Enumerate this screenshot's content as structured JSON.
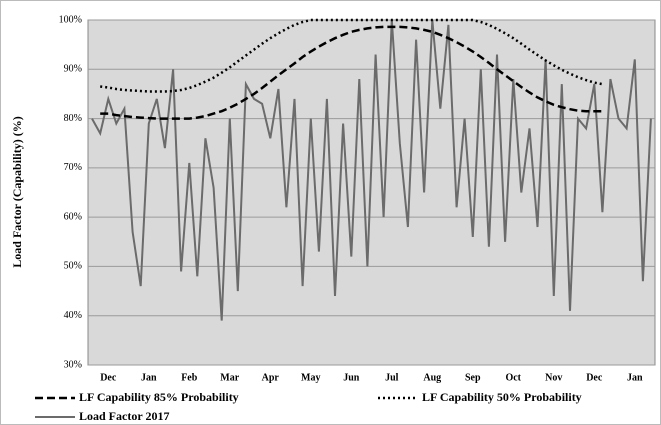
{
  "chart_data": {
    "type": "line",
    "y_label": "Load Factor (Capability) (%)",
    "categories": [
      null,
      null,
      "Dec",
      null,
      null,
      null,
      null,
      "Jan",
      null,
      null,
      null,
      null,
      "Feb",
      null,
      null,
      null,
      null,
      "Mar",
      null,
      null,
      null,
      null,
      "Apr",
      null,
      null,
      null,
      null,
      "May",
      null,
      null,
      null,
      null,
      "Jun",
      null,
      null,
      null,
      null,
      "Jul",
      null,
      null,
      null,
      null,
      "Aug",
      null,
      null,
      null,
      null,
      "Sep",
      null,
      null,
      null,
      null,
      "Oct",
      null,
      null,
      null,
      null,
      "Nov",
      null,
      null,
      null,
      null,
      "Dec",
      null,
      null,
      null,
      null,
      "Jan",
      null,
      null
    ],
    "ylim": [
      30,
      100
    ],
    "yticks": [
      {
        "value": 30,
        "label": "30%"
      },
      {
        "value": 40,
        "label": "40%"
      },
      {
        "value": 50,
        "label": "50%"
      },
      {
        "value": 60,
        "label": "60%"
      },
      {
        "value": 70,
        "label": "70%"
      },
      {
        "value": 80,
        "label": "80%"
      },
      {
        "value": 90,
        "label": "90%"
      },
      {
        "value": 100,
        "label": "100%"
      }
    ],
    "grid": true,
    "legend": "bottom",
    "series": [
      {
        "name": "LF Capability 85% Probability",
        "color": "#000000",
        "dash": "dashed",
        "values": [
          null,
          81,
          81,
          80.7,
          80.5,
          80.3,
          80.2,
          80.1,
          80,
          80,
          80,
          80,
          80,
          80.2,
          80.5,
          81,
          81.5,
          82.2,
          83,
          84,
          85,
          86.2,
          87.5,
          88.8,
          90,
          91.2,
          92.5,
          93.6,
          94.6,
          95.5,
          96.3,
          97,
          97.6,
          98,
          98.3,
          98.5,
          98.6,
          98.6,
          98.6,
          98.5,
          98.3,
          98,
          97.6,
          97,
          96.3,
          95.5,
          94.6,
          93.6,
          92.5,
          91.3,
          90,
          88.8,
          87.6,
          86.4,
          85.3,
          84.3,
          83.5,
          82.8,
          82.3,
          81.9,
          81.6,
          81.5,
          81.5,
          81.5,
          null,
          null,
          null,
          null,
          null,
          null
        ]
      },
      {
        "name": "LF Capability 50% Probability",
        "color": "#000000",
        "dash": "dotted",
        "values": [
          null,
          86.5,
          86.3,
          86,
          85.8,
          85.7,
          85.6,
          85.5,
          85.5,
          85.5,
          85.6,
          85.8,
          86.2,
          86.8,
          87.5,
          88.3,
          89.3,
          90.4,
          91.6,
          92.8,
          94,
          95.2,
          96.3,
          97.3,
          98.2,
          99,
          99.6,
          100,
          100,
          100,
          100,
          100,
          100,
          100,
          100,
          100,
          100,
          100,
          100,
          100,
          100,
          100,
          100,
          100,
          100,
          100,
          100,
          100,
          99.6,
          99,
          98.2,
          97.3,
          96.3,
          95.2,
          94,
          92.9,
          91.8,
          90.8,
          89.9,
          89.1,
          88.4,
          87.8,
          87.3,
          87,
          null,
          null,
          null,
          null,
          null,
          null
        ]
      },
      {
        "name": "Load Factor 2017",
        "color": "#6b6b6b",
        "dash": "solid",
        "values": [
          80,
          77,
          84,
          79,
          82,
          57,
          46,
          79,
          84,
          74,
          90,
          49,
          71,
          48,
          76,
          66,
          39,
          80,
          45,
          87,
          84,
          83,
          76,
          86,
          62,
          84,
          46,
          80,
          53,
          84,
          44,
          79,
          52,
          88,
          50,
          93,
          60,
          100,
          75,
          58,
          96,
          65,
          100,
          82,
          99,
          62,
          80,
          56,
          90,
          54,
          93,
          55,
          88,
          65,
          78,
          58,
          92,
          44,
          87,
          41,
          80,
          78,
          87,
          61,
          88,
          80,
          78,
          92,
          47,
          80
        ]
      }
    ]
  }
}
